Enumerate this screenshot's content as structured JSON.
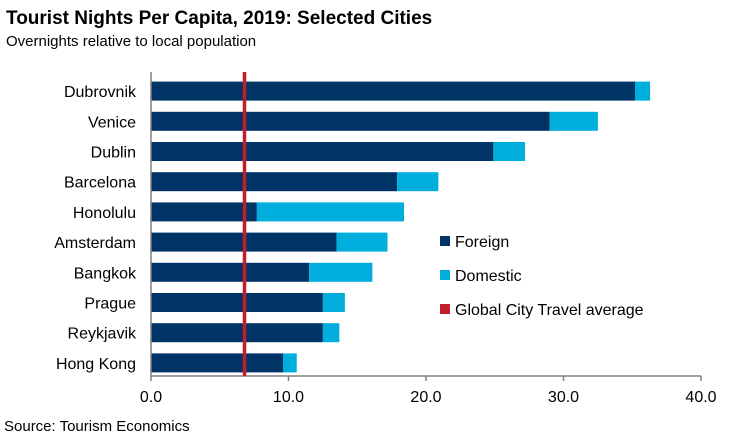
{
  "chart_data": {
    "type": "bar",
    "orientation": "horizontal",
    "stacked": true,
    "title": "Tourist Nights Per Capita, 2019: Selected Cities",
    "subtitle": "Overnights  relative  to local population",
    "source": "Source: Tourism  Economics",
    "categories": [
      "Dubrovnik",
      "Venice",
      "Dublin",
      "Barcelona",
      "Honolulu",
      "Amsterdam",
      "Bangkok",
      "Prague",
      "Reykjavik",
      "Hong Kong"
    ],
    "series": [
      {
        "name": "Foreign",
        "color": "#003366",
        "values": [
          35.2,
          29.0,
          24.9,
          17.9,
          7.7,
          13.5,
          11.5,
          12.5,
          12.5,
          9.6
        ]
      },
      {
        "name": "Domestic",
        "color": "#00aedd",
        "values": [
          1.1,
          3.5,
          2.3,
          3.0,
          10.7,
          3.7,
          4.6,
          1.6,
          1.2,
          1.0
        ]
      }
    ],
    "reference_line": {
      "name": "Global City Travel average",
      "value": 6.8,
      "color": "#c0202a"
    },
    "xlim": [
      0,
      40
    ],
    "xticks": [
      "0.0",
      "10.0",
      "20.0",
      "30.0",
      "40.0"
    ],
    "xtick_values": [
      0,
      10,
      20,
      30,
      40
    ],
    "legend_position": "center-right",
    "grid": false
  }
}
